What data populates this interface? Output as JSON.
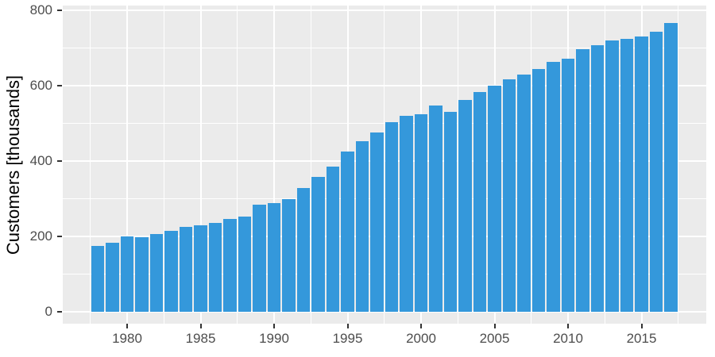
{
  "chart_data": {
    "type": "bar",
    "title": "",
    "xlabel": "",
    "ylabel": "Customers [thousands]",
    "x": [
      1978,
      1979,
      1980,
      1981,
      1982,
      1983,
      1984,
      1985,
      1986,
      1987,
      1988,
      1989,
      1990,
      1991,
      1992,
      1993,
      1994,
      1995,
      1996,
      1997,
      1998,
      1999,
      2000,
      2001,
      2002,
      2003,
      2004,
      2005,
      2006,
      2007,
      2008,
      2009,
      2010,
      2011,
      2012,
      2013,
      2014,
      2015,
      2016,
      2017
    ],
    "values": [
      175,
      183,
      200,
      199,
      208,
      216,
      226,
      230,
      236,
      247,
      253,
      285,
      290,
      300,
      330,
      358,
      386,
      425,
      453,
      477,
      503,
      521,
      525,
      548,
      532,
      562,
      584,
      601,
      617,
      630,
      645,
      663,
      672,
      698,
      708,
      720,
      724,
      731,
      744,
      766
    ],
    "x_tick_labels": [
      "1980",
      "1985",
      "1990",
      "1995",
      "2000",
      "2005",
      "2010",
      "2015"
    ],
    "x_ticks": [
      1980,
      1985,
      1990,
      1995,
      2000,
      2005,
      2010,
      2015
    ],
    "y_tick_labels": [
      "0",
      "200",
      "400",
      "600",
      "800"
    ],
    "y_ticks": [
      0,
      200,
      400,
      600,
      800
    ],
    "y_minor_ticks": [
      100,
      300,
      500,
      700
    ],
    "ylim": [
      0,
      800
    ],
    "grid": "white major and minor gridlines on gray panel",
    "legend": "none",
    "colors": {
      "bar_fill": "#3498DB",
      "panel_background": "#EBEBEB",
      "gridline": "#FFFFFF",
      "tick_text": "#4D4D4D",
      "axis_title": "#000000",
      "tick_mark": "#333333",
      "page_background": "#FFFFFF"
    }
  }
}
